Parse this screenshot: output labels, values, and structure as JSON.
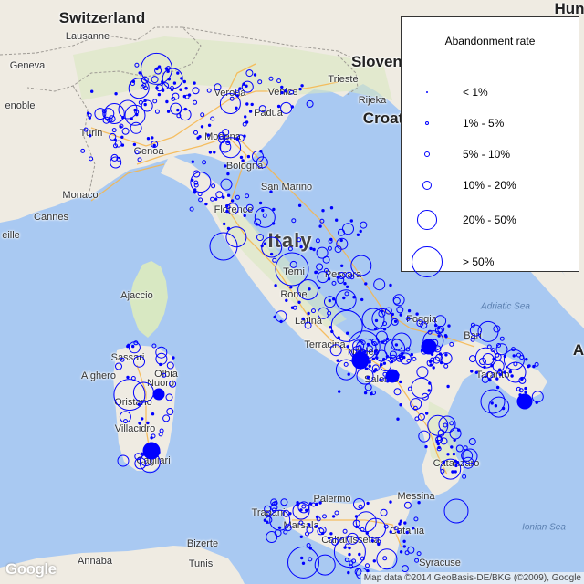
{
  "map": {
    "place_labels": [
      {
        "text": "Switzerland",
        "kind": "country"
      },
      {
        "text": "Lausanne",
        "kind": "city"
      },
      {
        "text": "Geneva",
        "kind": "city"
      },
      {
        "text": "enoble",
        "kind": "city"
      },
      {
        "text": "Turin",
        "kind": "city"
      },
      {
        "text": "Genoa",
        "kind": "city"
      },
      {
        "text": "Monaco",
        "kind": "city"
      },
      {
        "text": "Cannes",
        "kind": "city"
      },
      {
        "text": "eille",
        "kind": "city"
      },
      {
        "text": "Verona",
        "kind": "city"
      },
      {
        "text": "Venice",
        "kind": "city"
      },
      {
        "text": "Padua",
        "kind": "city"
      },
      {
        "text": "Trieste",
        "kind": "city"
      },
      {
        "text": "Slovenia",
        "kind": "country"
      },
      {
        "text": "Rijeka",
        "kind": "city"
      },
      {
        "text": "Croat",
        "kind": "country"
      },
      {
        "text": "Hun",
        "kind": "country"
      },
      {
        "text": "Modena",
        "kind": "city"
      },
      {
        "text": "Bologna",
        "kind": "city"
      },
      {
        "text": "San Marino",
        "kind": "city"
      },
      {
        "text": "Florence",
        "kind": "city"
      },
      {
        "text": "Italy",
        "kind": "country-big"
      },
      {
        "text": "Pescara",
        "kind": "city"
      },
      {
        "text": "Terni",
        "kind": "city"
      },
      {
        "text": "Rome",
        "kind": "city"
      },
      {
        "text": "Latina",
        "kind": "city"
      },
      {
        "text": "Terracina",
        "kind": "city"
      },
      {
        "text": "Adriatic Sea",
        "kind": "sea"
      },
      {
        "text": "Foggia",
        "kind": "city"
      },
      {
        "text": "Bari",
        "kind": "city"
      },
      {
        "text": "Naples",
        "kind": "city"
      },
      {
        "text": "Salerno",
        "kind": "city"
      },
      {
        "text": "Taranto",
        "kind": "city"
      },
      {
        "text": "Ajaccio",
        "kind": "city"
      },
      {
        "text": "Sassari",
        "kind": "city"
      },
      {
        "text": "Olbia",
        "kind": "city"
      },
      {
        "text": "Alghero",
        "kind": "city"
      },
      {
        "text": "Nuoro",
        "kind": "city"
      },
      {
        "text": "Oristano",
        "kind": "city"
      },
      {
        "text": "Villacidro",
        "kind": "city"
      },
      {
        "text": "Cagliari",
        "kind": "city"
      },
      {
        "text": "Catanzaro",
        "kind": "city"
      },
      {
        "text": "Palermo",
        "kind": "city"
      },
      {
        "text": "Messina",
        "kind": "city"
      },
      {
        "text": "Trapani",
        "kind": "city"
      },
      {
        "text": "Marsala",
        "kind": "city"
      },
      {
        "text": "Caltanissetta",
        "kind": "city"
      },
      {
        "text": "Catania",
        "kind": "city"
      },
      {
        "text": "Syracuse",
        "kind": "city"
      },
      {
        "text": "Ionian Sea",
        "kind": "sea"
      },
      {
        "text": "Bizerte",
        "kind": "city"
      },
      {
        "text": "Annaba",
        "kind": "city"
      },
      {
        "text": "Tunis",
        "kind": "city"
      },
      {
        "text": "A",
        "kind": "country"
      }
    ],
    "colors": {
      "sea": "#a9c9f2",
      "land": "#efebe2",
      "land_green": "#d8e8c2",
      "road": "#f7b64a",
      "marker": "#0000ff"
    }
  },
  "legend": {
    "title": "Abandonment rate",
    "items": [
      {
        "label": "< 1%",
        "rate_range": [
          0,
          1
        ]
      },
      {
        "label": "1% - 5%",
        "rate_range": [
          1,
          5
        ]
      },
      {
        "label": "5% - 10%",
        "rate_range": [
          5,
          10
        ]
      },
      {
        "label": "10% - 20%",
        "rate_range": [
          10,
          20
        ]
      },
      {
        "label": "20% - 50%",
        "rate_range": [
          20,
          50
        ]
      },
      {
        "label": "> 50%",
        "rate_range": [
          50,
          100
        ]
      }
    ]
  },
  "google_logo": "Google",
  "attribution": "Map data ©2014 GeoBasis-DE/BKG (©2009), Google"
}
